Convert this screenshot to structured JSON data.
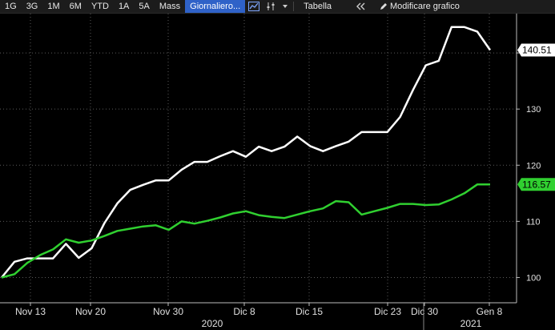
{
  "toolbar": {
    "ranges": [
      "1G",
      "3G",
      "1M",
      "6M",
      "YTD",
      "1A",
      "5A",
      "Mass"
    ],
    "frequency": "Giornaliero...",
    "chart_icon": "line-chart-icon",
    "settings_icon": "sliders-icon",
    "dropdown_icon": "caret-down-icon",
    "table_label": "Tabella",
    "collapse_icon": "double-chevron-left-icon",
    "edit_icon": "pencil-icon",
    "edit_label": "Modificare grafico"
  },
  "chart_data": {
    "type": "line",
    "x_ticks": [
      "Nov 13",
      "Nov 20",
      "Nov 30",
      "Dic 8",
      "Dic 15",
      "Dic 23",
      "Dic 30",
      "Gen 8"
    ],
    "year_labels": [
      "2020",
      "2021"
    ],
    "y_ticks": [
      100,
      110,
      120,
      130,
      140
    ],
    "ylim": [
      95.5,
      147
    ],
    "grid": true,
    "series": [
      {
        "color": "#ffffff",
        "last_label": "140.51",
        "values": [
          100,
          102.8,
          103.4,
          103.4,
          103.4,
          106,
          103.5,
          105.2,
          109.7,
          113.2,
          115.6,
          116.5,
          117.3,
          117.3,
          119.2,
          120.6,
          120.6,
          121.6,
          122.5,
          121.5,
          123.3,
          122.5,
          123.3,
          125.1,
          123.4,
          122.5,
          123.4,
          124.2,
          125.9,
          125.9,
          125.9,
          128.6,
          133.4,
          137.8,
          138.6,
          144.6,
          144.6,
          143.8,
          140.51
        ]
      },
      {
        "color": "#30d030",
        "last_label": "116.57",
        "values": [
          100,
          100.6,
          102.6,
          104,
          105,
          106.8,
          106.2,
          106.6,
          107.4,
          108.3,
          108.7,
          109.1,
          109.3,
          108.5,
          110,
          109.6,
          110.1,
          110.7,
          111.4,
          111.8,
          111.1,
          110.8,
          110.6,
          111.2,
          111.8,
          112.3,
          113.6,
          113.4,
          111.2,
          111.8,
          112.4,
          113.1,
          113.1,
          112.9,
          113,
          113.9,
          115,
          116.57,
          116.57
        ]
      }
    ]
  }
}
